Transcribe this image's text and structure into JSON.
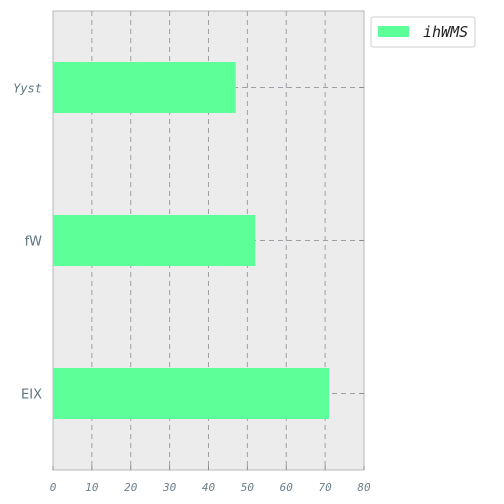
{
  "chart_data": {
    "type": "bar",
    "orientation": "horizontal",
    "categories": [
      "Yyst",
      "fW",
      "EIX"
    ],
    "series": [
      {
        "name": "ihWMS",
        "values": [
          47,
          52,
          71
        ]
      }
    ],
    "xlim": [
      0,
      80
    ],
    "x_ticks": [
      "0",
      "10",
      "20",
      "30",
      "40",
      "50",
      "60",
      "70",
      "80"
    ],
    "grid": true,
    "legend_position": "top-right, outside plot",
    "colors": {
      "bar": "#5cff98",
      "plot_background": "#ececec",
      "grid": "#9aa0a6"
    }
  }
}
